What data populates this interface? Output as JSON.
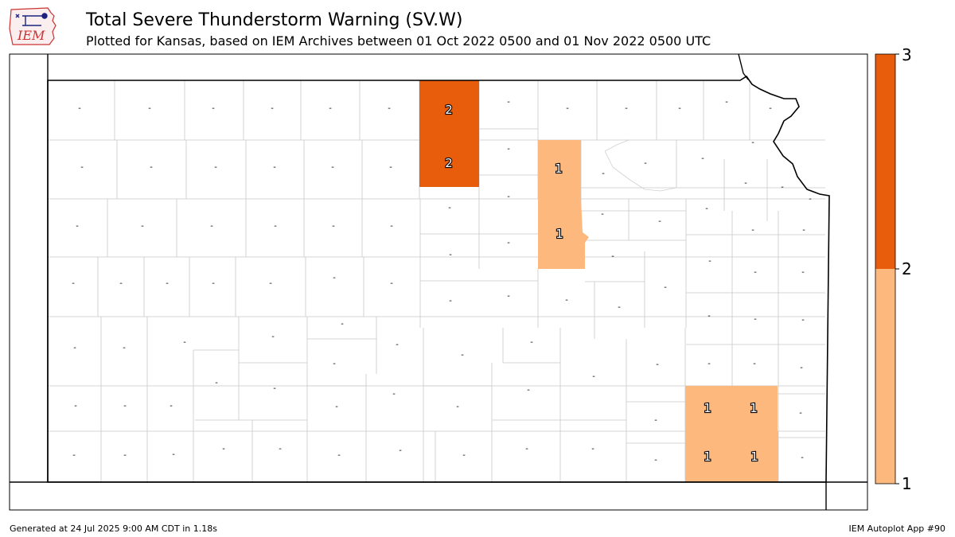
{
  "header": {
    "logo_text": "IEM",
    "title": "Total Severe Thunderstorm Warning (SV.W)",
    "subtitle": "Plotted for Kansas, based on IEM Archives  between 01 Oct 2022 0500 and 01 Nov 2022 0500 UTC"
  },
  "colorbar": {
    "ticks": [
      "1",
      "2",
      "3"
    ],
    "colors": [
      "#fdb97d",
      "#e85d0c"
    ]
  },
  "map": {
    "zero_marker": "-",
    "fill_colors": {
      "one": "#fdb97d",
      "two": "#e85d0c"
    },
    "counts": [
      "2",
      "2",
      "1",
      "1",
      "1",
      "1",
      "1",
      "1"
    ]
  },
  "footer": {
    "generated": "Generated at 24 Jul 2025 9:00 AM CDT in 1.18s",
    "app": "IEM Autoplot App #90"
  }
}
